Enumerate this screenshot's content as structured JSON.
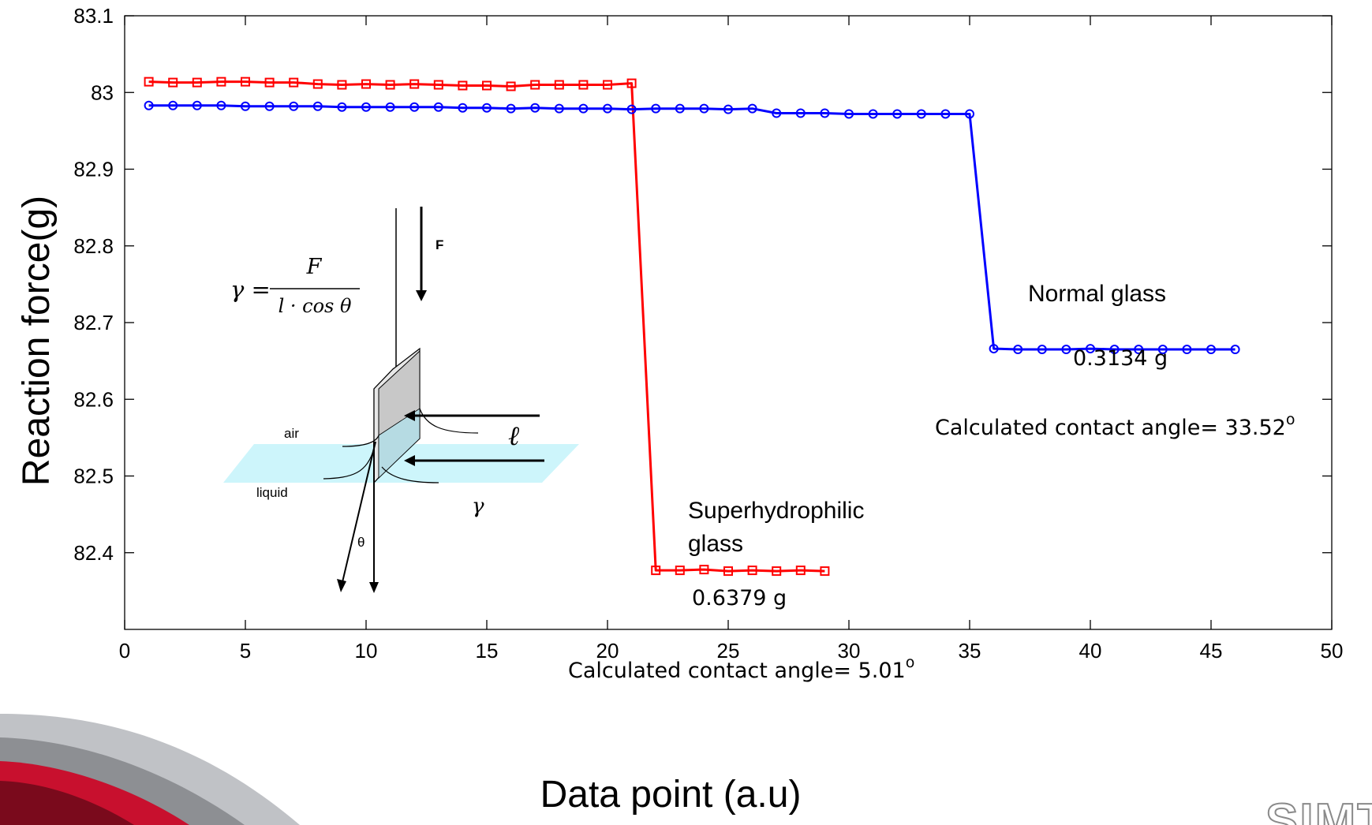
{
  "chart_data": {
    "type": "line",
    "xlabel": "Data point (a.u)",
    "ylabel": "Reaction force(g)",
    "xlim": [
      0,
      50
    ],
    "ylim": [
      82.3,
      83.1
    ],
    "x_ticks": [
      "0",
      "5",
      "10",
      "15",
      "20",
      "25",
      "30",
      "35",
      "40",
      "45",
      "50"
    ],
    "y_ticks": [
      "82.4",
      "82.5",
      "82.6",
      "82.7",
      "82.8",
      "82.9",
      "83",
      "83.1"
    ],
    "grid": false,
    "series": [
      {
        "color": "#ff0000",
        "marker": "square",
        "x": [
          1,
          2,
          3,
          4,
          5,
          6,
          7,
          8,
          9,
          10,
          11,
          12,
          13,
          14,
          15,
          16,
          17,
          18,
          19,
          20,
          21,
          22,
          23,
          24,
          25,
          26,
          27,
          28,
          29
        ],
        "y": [
          83.014,
          83.013,
          83.013,
          83.014,
          83.014,
          83.013,
          83.013,
          83.011,
          83.01,
          83.011,
          83.01,
          83.011,
          83.01,
          83.009,
          83.009,
          83.008,
          83.01,
          83.01,
          83.01,
          83.01,
          83.012,
          82.377,
          82.377,
          82.378,
          82.376,
          82.377,
          82.376,
          82.377,
          82.376
        ]
      },
      {
        "color": "#0000ff",
        "marker": "circle",
        "x": [
          1,
          2,
          3,
          4,
          5,
          6,
          7,
          8,
          9,
          10,
          11,
          12,
          13,
          14,
          15,
          16,
          17,
          18,
          19,
          20,
          21,
          22,
          23,
          24,
          25,
          26,
          27,
          28,
          29,
          30,
          31,
          32,
          33,
          34,
          35,
          36,
          37,
          38,
          39,
          40,
          41,
          42,
          43,
          44,
          45,
          46
        ],
        "y": [
          82.983,
          82.983,
          82.983,
          82.983,
          82.982,
          82.982,
          82.982,
          82.982,
          82.981,
          82.981,
          82.981,
          82.981,
          82.981,
          82.98,
          82.98,
          82.979,
          82.98,
          82.979,
          82.979,
          82.979,
          82.978,
          82.979,
          82.979,
          82.979,
          82.978,
          82.979,
          82.973,
          82.973,
          82.973,
          82.972,
          82.972,
          82.972,
          82.972,
          82.972,
          82.972,
          82.666,
          82.665,
          82.665,
          82.665,
          82.666,
          82.665,
          82.665,
          82.665,
          82.665,
          82.665,
          82.665
        ]
      }
    ],
    "annotations": {
      "normal_label": "Normal glass",
      "normal_force": "0.3134 g",
      "normal_angle_prefix": "Calculated contact angle= 33.52",
      "normal_angle_sup": "o",
      "super_label_line1": "Superhydrophilic",
      "super_label_line2": "glass",
      "super_force": "0.6379 g",
      "super_angle_prefix": "Calculated contact angle= 5.01",
      "super_angle_sup": "o"
    },
    "inset": {
      "formula_lhs": "γ =",
      "formula_num": "F",
      "formula_den": "l · cos θ",
      "force_label": "F",
      "air_label": "air",
      "liquid_label": "liquid",
      "length_symbol": "ℓ",
      "gamma_symbol": "γ",
      "theta_symbol": "θ"
    }
  },
  "footer": {
    "logo_text": "SIMTECH",
    "colors": {
      "red_series": "#ff0000",
      "blue_series": "#0000ff",
      "water": "#cdf5fb"
    }
  }
}
